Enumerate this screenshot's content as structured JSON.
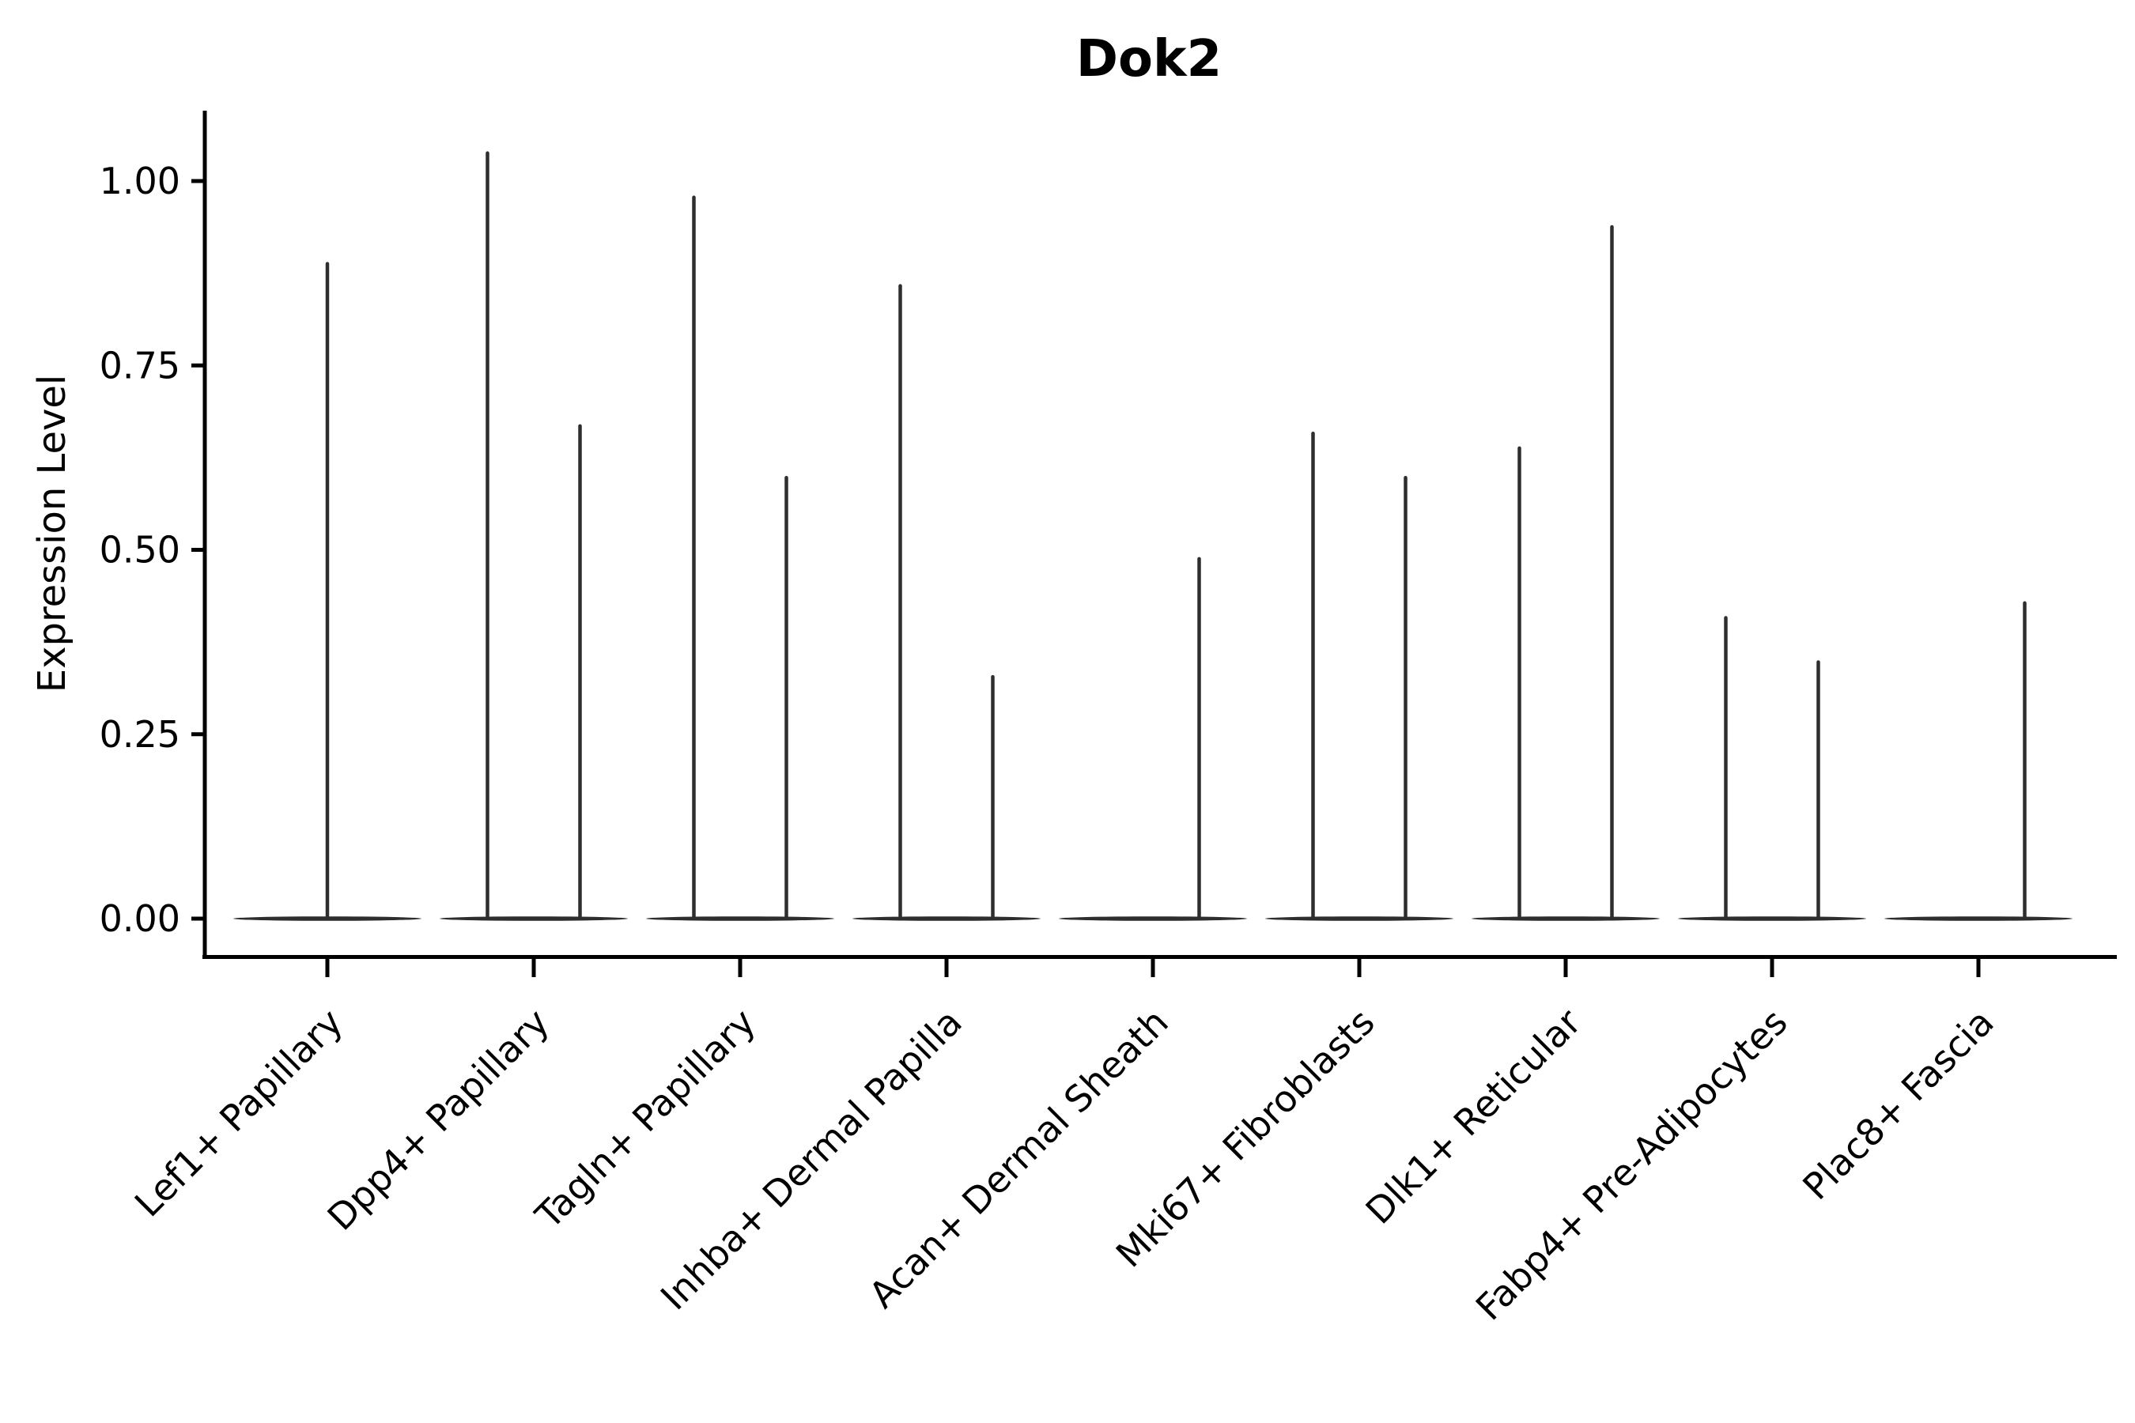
{
  "chart": {
    "background": "#ffffff",
    "axis_color": "#000000",
    "violin_color": "#2e2e2e"
  },
  "chart_data": {
    "type": "violin",
    "title": "Dok2",
    "xlabel": "",
    "ylabel": "Expression Level",
    "ylim": [
      -0.05,
      1.1
    ],
    "grid": false,
    "legend": false,
    "x_tick_rotation_deg": 45,
    "yticks": [
      {
        "value": 0.0,
        "label": "0.00"
      },
      {
        "value": 0.25,
        "label": "0.25"
      },
      {
        "value": 0.5,
        "label": "0.50"
      },
      {
        "value": 0.75,
        "label": "0.75"
      },
      {
        "value": 1.0,
        "label": "1.00"
      }
    ],
    "categories": [
      "Lef1+ Papillary",
      "Dpp4+ Papillary",
      "Tagln+ Papillary",
      "Inhba+ Dermal Papilla",
      "Acan+ Dermal Sheath",
      "Mki67+ Fibroblasts",
      "Dlk1+ Reticular",
      "Fabp4+ Pre-Adipocytes",
      "Plac8+ Fascia"
    ],
    "series": [
      {
        "category": "Lef1+ Papillary",
        "zero_mass": true,
        "violins": [
          {
            "position": "center",
            "max": 0.89
          }
        ]
      },
      {
        "category": "Dpp4+ Papillary",
        "zero_mass": true,
        "violins": [
          {
            "position": "left",
            "max": 1.04
          },
          {
            "position": "right",
            "max": 0.67
          }
        ]
      },
      {
        "category": "Tagln+ Papillary",
        "zero_mass": true,
        "violins": [
          {
            "position": "left",
            "max": 0.98
          },
          {
            "position": "right",
            "max": 0.6
          }
        ]
      },
      {
        "category": "Inhba+ Dermal Papilla",
        "zero_mass": true,
        "violins": [
          {
            "position": "left",
            "max": 0.86
          },
          {
            "position": "right",
            "max": 0.33
          }
        ]
      },
      {
        "category": "Acan+ Dermal Sheath",
        "zero_mass": true,
        "violins": [
          {
            "position": "right",
            "max": 0.49
          }
        ]
      },
      {
        "category": "Mki67+ Fibroblasts",
        "zero_mass": true,
        "violins": [
          {
            "position": "left",
            "max": 0.66
          },
          {
            "position": "right",
            "max": 0.6
          }
        ]
      },
      {
        "category": "Dlk1+ Reticular",
        "zero_mass": true,
        "violins": [
          {
            "position": "left",
            "max": 0.64
          },
          {
            "position": "right",
            "max": 0.94
          }
        ]
      },
      {
        "category": "Fabp4+ Pre-Adipocytes",
        "zero_mass": true,
        "violins": [
          {
            "position": "left",
            "max": 0.41
          },
          {
            "position": "right",
            "max": 0.35
          }
        ]
      },
      {
        "category": "Plac8+ Fascia",
        "zero_mass": true,
        "violins": [
          {
            "position": "right",
            "max": 0.43
          }
        ]
      }
    ]
  }
}
